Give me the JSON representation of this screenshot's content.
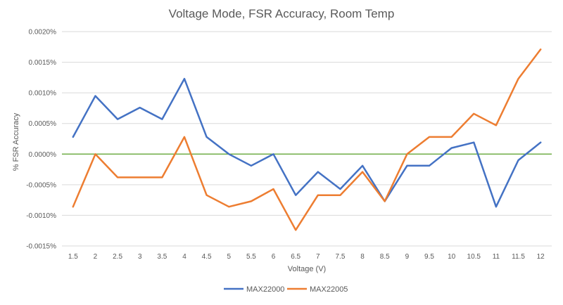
{
  "chart_data": {
    "type": "line",
    "title": "Voltage Mode, FSR Accuracy, Room Temp",
    "xlabel": "Voltage (V)",
    "ylabel": "% FSR Accuracy",
    "categories": [
      "1.5",
      "2",
      "2.5",
      "3",
      "3.5",
      "4",
      "4.5",
      "5",
      "5.5",
      "6",
      "6.5",
      "7",
      "7.5",
      "8",
      "8.5",
      "9",
      "9.5",
      "10",
      "10.5",
      "11",
      "11.5",
      "12"
    ],
    "ylim": [
      -0.0015,
      0.002
    ],
    "yticks": [
      -0.0015,
      -0.001,
      -0.0005,
      0,
      0.0005,
      0.001,
      0.0015,
      0.002
    ],
    "ytick_labels": [
      "-0.0015%",
      "-0.0010%",
      "-0.0005%",
      "0.0000%",
      "0.0005%",
      "0.0010%",
      "0.0015%",
      "0.0020%"
    ],
    "grid": true,
    "legend_position": "bottom",
    "zero_line_color": "#70AD47",
    "series": [
      {
        "name": "MAX22000",
        "color": "#4472C4",
        "values": [
          0.00028,
          0.00095,
          0.00057,
          0.00076,
          0.00057,
          0.00123,
          0.00028,
          0.0,
          -0.00019,
          0.0,
          -0.00067,
          -0.00029,
          -0.00057,
          -0.00019,
          -0.00077,
          -0.00019,
          -0.00019,
          0.0001,
          0.00019,
          -0.00086,
          -0.0001,
          0.00019
        ]
      },
      {
        "name": "MAX22005",
        "color": "#ED7D31",
        "values": [
          -0.00086,
          0.0,
          -0.00038,
          -0.00038,
          -0.00038,
          0.00028,
          -0.00067,
          -0.00086,
          -0.00077,
          -0.00057,
          -0.00124,
          -0.00067,
          -0.00067,
          -0.00029,
          -0.00077,
          0.0,
          0.00028,
          0.00028,
          0.00066,
          0.00047,
          0.00123,
          0.00171
        ]
      }
    ]
  }
}
